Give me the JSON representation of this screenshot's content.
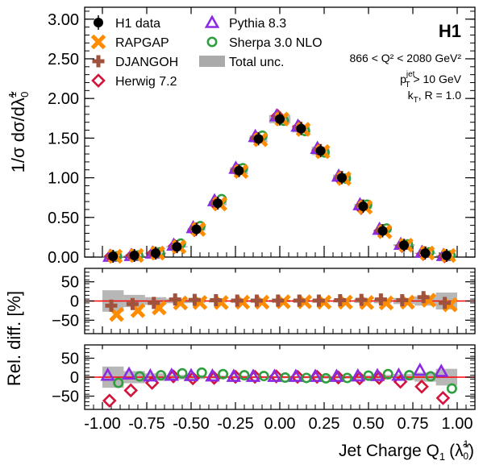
{
  "chart_data": {
    "type": "scatter",
    "experiment_label": "H1",
    "cuts": {
      "q2": "866 < Q² < 2080 GeV²",
      "pt_base": "p",
      "pt_sub": "T",
      "pt_sup": "jet",
      "pt_rest": " > 10 GeV",
      "algo_base": "k",
      "algo_sub": "T",
      "algo_rest": ", R = 1.0"
    },
    "x_axis": {
      "label_main": "Jet Charge Q",
      "label_sub": "1",
      "label_paren": "(",
      "label_lambda": "λ̃",
      "label_lambda_sup": "1",
      "label_lambda_sub": "0",
      "label_close": ")",
      "range": [
        -1.1,
        1.1
      ],
      "ticks": [
        -1.0,
        -0.75,
        -0.5,
        -0.25,
        0.0,
        0.25,
        0.5,
        0.75,
        1.0
      ],
      "tick_labels": [
        "-1.00",
        "-0.75",
        "-0.50",
        "-0.25",
        "0.00",
        "0.25",
        "0.50",
        "0.75",
        "1.00"
      ]
    },
    "panel_main": {
      "ylabel": "1/σ dσ/dλ̃",
      "ylabel_sup": "1",
      "ylabel_sub": "0",
      "ylim": [
        0,
        3.15
      ],
      "yticks": [
        0,
        0.5,
        1.0,
        1.5,
        2.0,
        2.5,
        3.0
      ],
      "ytick_labels": [
        "0.00",
        "0.50",
        "1.00",
        "1.50",
        "2.00",
        "2.50",
        "3.00"
      ]
    },
    "panel_ratio": {
      "ylabel": "Rel. diff. [%]",
      "ylim": [
        -85,
        85
      ],
      "yticks": [
        -50,
        0,
        50
      ],
      "ytick_labels": [
        "−50",
        "0",
        "50"
      ]
    },
    "legend": [
      {
        "name": "H1 data",
        "marker": "data",
        "color": "#000000"
      },
      {
        "name": "RAPGAP",
        "marker": "cross",
        "color": "#ff8c00"
      },
      {
        "name": "DJANGOH",
        "marker": "plus",
        "color": "#a0523d"
      },
      {
        "name": "Herwig 7.2",
        "marker": "diamond",
        "color": "#d2143c"
      },
      {
        "name": "Pythia 8.3",
        "marker": "triangle",
        "color": "#8a2be2"
      },
      {
        "name": "Sherpa 3.0 NLO",
        "marker": "circle",
        "color": "#2e9e3e"
      },
      {
        "name": "Total unc.",
        "marker": "band",
        "color": "#aaaaaa"
      }
    ],
    "x": [
      -0.94,
      -0.82,
      -0.7,
      -0.58,
      -0.47,
      -0.35,
      -0.23,
      -0.12,
      0.0,
      0.12,
      0.23,
      0.35,
      0.47,
      0.58,
      0.7,
      0.82,
      0.94
    ],
    "bin_halfwidth": [
      0.06,
      0.06,
      0.06,
      0.06,
      0.05,
      0.05,
      0.05,
      0.05,
      0.06,
      0.05,
      0.05,
      0.05,
      0.05,
      0.05,
      0.06,
      0.06,
      0.06
    ],
    "series": [
      {
        "name": "H1 data",
        "values": [
          0.01,
          0.02,
          0.05,
          0.13,
          0.35,
          0.68,
          1.09,
          1.49,
          1.74,
          1.62,
          1.34,
          1.0,
          0.64,
          0.33,
          0.15,
          0.05,
          0.02
        ],
        "unc_pct": [
          28,
          16,
          10,
          6,
          5,
          4,
          4,
          3,
          3,
          3,
          4,
          4,
          5,
          6,
          8,
          12,
          22
        ]
      },
      {
        "name": "RAPGAP",
        "values": [
          0.01,
          0.02,
          0.05,
          0.13,
          0.35,
          0.67,
          1.08,
          1.48,
          1.74,
          1.61,
          1.33,
          0.99,
          0.63,
          0.32,
          0.15,
          0.05,
          0.02
        ],
        "rel_pct": [
          -35,
          -25,
          -18,
          -5,
          -4,
          -4,
          -3,
          -3,
          -2,
          -2,
          -3,
          -3,
          -4,
          -5,
          -3,
          2,
          -10
        ]
      },
      {
        "name": "DJANGOH",
        "values": [
          0.01,
          0.02,
          0.05,
          0.13,
          0.36,
          0.68,
          1.09,
          1.5,
          1.76,
          1.63,
          1.35,
          1.01,
          0.65,
          0.34,
          0.15,
          0.06,
          0.02
        ],
        "rel_pct": [
          -12,
          -8,
          -5,
          4,
          3,
          2,
          1,
          1,
          1,
          1,
          1,
          2,
          3,
          4,
          2,
          10,
          -5
        ]
      },
      {
        "name": "Herwig 7.2",
        "values": [
          0.01,
          0.02,
          0.05,
          0.14,
          0.34,
          0.67,
          1.1,
          1.5,
          1.78,
          1.64,
          1.35,
          0.99,
          0.62,
          0.33,
          0.14,
          0.04,
          0.01
        ],
        "rel_pct": [
          -62,
          -35,
          -15,
          2,
          -3,
          -2,
          1,
          1,
          2,
          1,
          1,
          -1,
          -3,
          -2,
          -12,
          -25,
          -55
        ]
      },
      {
        "name": "Pythia 8.3",
        "values": [
          0.01,
          0.02,
          0.05,
          0.15,
          0.37,
          0.71,
          1.12,
          1.52,
          1.78,
          1.65,
          1.37,
          1.02,
          0.66,
          0.35,
          0.16,
          0.06,
          0.02
        ],
        "rel_pct": [
          5,
          8,
          3,
          5,
          4,
          3,
          2,
          2,
          2,
          2,
          2,
          2,
          3,
          4,
          5,
          18,
          15
        ]
      },
      {
        "name": "Sherpa 3.0 NLO",
        "values": [
          0.01,
          0.02,
          0.06,
          0.17,
          0.39,
          0.73,
          1.12,
          1.53,
          1.72,
          1.59,
          1.32,
          0.99,
          0.66,
          0.36,
          0.16,
          0.06,
          0.02
        ],
        "rel_pct": [
          -15,
          2,
          5,
          10,
          12,
          8,
          5,
          3,
          -1,
          -2,
          -3,
          -2,
          4,
          8,
          5,
          2,
          -30
        ]
      }
    ]
  }
}
